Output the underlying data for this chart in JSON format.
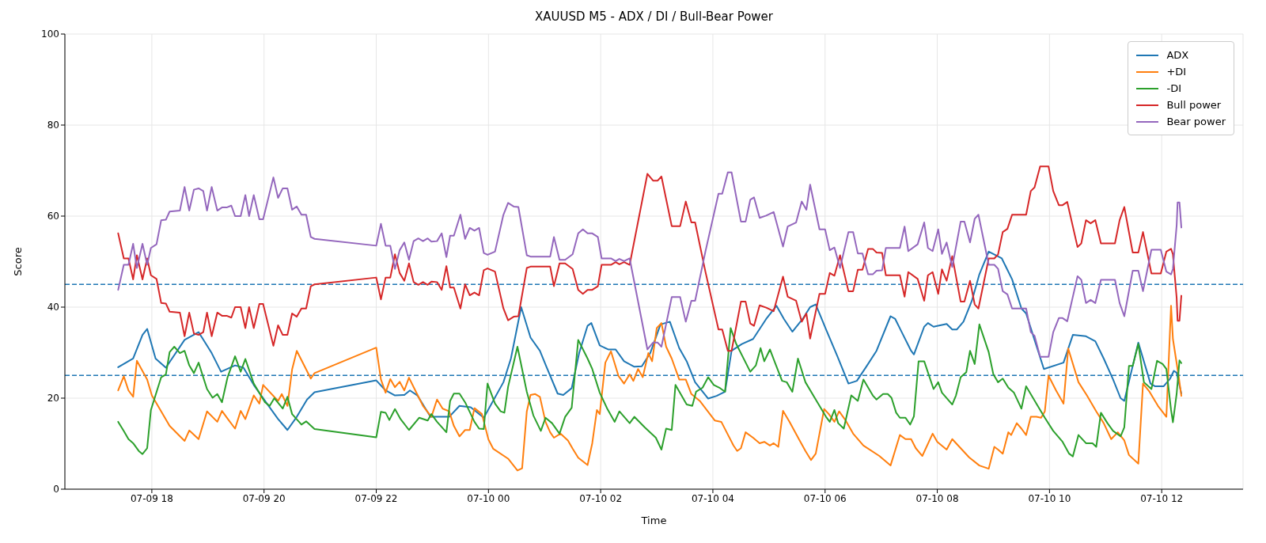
{
  "chart_data": {
    "type": "line",
    "title": "XAUUSD M5 - ADX / DI / Bull-Bear Power",
    "xlabel": "Time",
    "ylabel": "Score",
    "xlim": [
      "--07-09T16:27",
      "--07-10T13:27"
    ],
    "xticks": [
      {
        "value": "--07-09T18:00",
        "label": "07-09 18"
      },
      {
        "value": "--07-09T20:00",
        "label": "07-09 20"
      },
      {
        "value": "--07-09T22:00",
        "label": "07-09 22"
      },
      {
        "value": "--07-10T00:00",
        "label": "07-10 00"
      },
      {
        "value": "--07-10T02:00",
        "label": "07-10 02"
      },
      {
        "value": "--07-10T04:00",
        "label": "07-10 04"
      },
      {
        "value": "--07-10T06:00",
        "label": "07-10 06"
      },
      {
        "value": "--07-10T08:00",
        "label": "07-10 08"
      },
      {
        "value": "--07-10T10:00",
        "label": "07-10 10"
      },
      {
        "value": "--07-10T12:00",
        "label": "07-10 12"
      }
    ],
    "ylim": [
      0,
      100
    ],
    "yticks": [
      0,
      20,
      40,
      60,
      80,
      100
    ],
    "grid": true,
    "legend": "top right",
    "line_style": "solid",
    "ref_lines": [
      {
        "axis": "y",
        "value": 45,
        "color": "#1f77b4",
        "line_style": "dashed"
      },
      {
        "axis": "y",
        "value": 25,
        "color": "#1f77b4",
        "line_style": "dashed"
      }
    ],
    "x": [
      "--07-09T17:24",
      "--07-09T17:30",
      "--07-09T17:35",
      "--07-09T17:40",
      "--07-09T17:44",
      "--07-09T17:50",
      "--07-09T17:55",
      "--07-09T17:59",
      "--07-09T18:05",
      "--07-09T18:10",
      "--07-09T18:15",
      "--07-09T18:19",
      "--07-09T18:30",
      "--07-09T18:35",
      "--07-09T18:40",
      "--07-09T18:45",
      "--07-09T18:50",
      "--07-09T18:55",
      "--07-09T18:59",
      "--07-09T19:04",
      "--07-09T19:10",
      "--07-09T19:15",
      "--07-09T19:20",
      "--07-09T19:25",
      "--07-09T19:29",
      "--07-09T19:35",
      "--07-09T19:40",
      "--07-09T19:44",
      "--07-09T19:49",
      "--07-09T19:55",
      "--07-09T19:59",
      "--07-09T20:10",
      "--07-09T20:15",
      "--07-09T20:20",
      "--07-09T20:25",
      "--07-09T20:30",
      "--07-09T20:35",
      "--07-09T20:40",
      "--07-09T20:45",
      "--07-09T20:50",
      "--07-09T20:54",
      "--07-09T22:00",
      "--07-09T22:05",
      "--07-09T22:10",
      "--07-09T22:15",
      "--07-09T22:20",
      "--07-09T22:25",
      "--07-09T22:30",
      "--07-09T22:35",
      "--07-09T22:40",
      "--07-09T22:45",
      "--07-09T22:50",
      "--07-09T22:55",
      "--07-09T22:59",
      "--07-09T23:05",
      "--07-09T23:10",
      "--07-09T23:15",
      "--07-09T23:19",
      "--07-09T23:23",
      "--07-09T23:30",
      "--07-09T23:35",
      "--07-09T23:40",
      "--07-09T23:45",
      "--07-09T23:50",
      "--07-09T23:55",
      "--07-09T23:59",
      "--07-10T00:07",
      "--07-10T00:16",
      "--07-10T00:21",
      "--07-10T00:27",
      "--07-10T00:32",
      "--07-10T00:41",
      "--07-10T00:45",
      "--07-10T01:06",
      "--07-10T01:10",
      "--07-10T01:16",
      "--07-10T01:22",
      "--07-10T01:30",
      "--07-10T01:36",
      "--07-10T01:41",
      "--07-10T01:46",
      "--07-10T01:51",
      "--07-10T01:57",
      "--07-10T02:01",
      "--07-10T02:11",
      "--07-10T02:16",
      "--07-10T02:20",
      "--07-10T02:25",
      "--07-10T02:31",
      "--07-10T02:50",
      "--07-10T02:56",
      "--07-10T03:01",
      "--07-10T03:05",
      "--07-10T03:16",
      "--07-10T03:25",
      "--07-10T03:31",
      "--07-10T03:37",
      "--07-10T03:41",
      "--07-10T03:52",
      "--07-10T04:06",
      "--07-10T04:10",
      "--07-10T04:16",
      "--07-10T04:20",
      "--07-10T04:30",
      "--07-10T04:35",
      "--07-10T04:40",
      "--07-10T04:44",
      "--07-10T04:50",
      "--07-10T04:57",
      "--07-10T05:05",
      "--07-10T05:15",
      "--07-10T05:20",
      "--07-10T05:29",
      "--07-10T05:35",
      "--07-10T05:40",
      "--07-10T05:44",
      "--07-10T05:54",
      "--07-10T06:00",
      "--07-10T06:05",
      "--07-10T06:10",
      "--07-10T06:16",
      "--07-10T06:25",
      "--07-10T06:30",
      "--07-10T06:35",
      "--07-10T06:40",
      "--07-10T06:46",
      "--07-10T06:51",
      "--07-10T06:55",
      "--07-10T07:01",
      "--07-10T07:05",
      "--07-10T07:20",
      "--07-10T07:25",
      "--07-10T07:29",
      "--07-10T07:39",
      "--07-10T07:46",
      "--07-10T07:50",
      "--07-10T07:55",
      "--07-10T08:01",
      "--07-10T08:05",
      "--07-10T08:10",
      "--07-10T08:16",
      "--07-10T08:25",
      "--07-10T08:29",
      "--07-10T08:35",
      "--07-10T08:40",
      "--07-10T08:44",
      "--07-10T08:55",
      "--07-10T09:01",
      "--07-10T09:05",
      "--07-10T09:10",
      "--07-10T09:15",
      "--07-10T09:20",
      "--07-10T09:35",
      "--07-10T09:40",
      "--07-10T09:44",
      "--07-10T09:50",
      "--07-10T09:59",
      "--07-10T10:04",
      "--07-10T10:10",
      "--07-10T10:14",
      "--07-10T10:19",
      "--07-10T10:30",
      "--07-10T10:34",
      "--07-10T10:39",
      "--07-10T10:44",
      "--07-10T10:49",
      "--07-10T10:55",
      "--07-10T11:10",
      "--07-10T11:15",
      "--07-10T11:20",
      "--07-10T11:29",
      "--07-10T11:35",
      "--07-10T11:40",
      "--07-10T11:49",
      "--07-10T11:59",
      "--07-10T12:05",
      "--07-10T12:10",
      "--07-10T12:12",
      "--07-10T12:16",
      "--07-10T12:17",
      "--07-10T12:19",
      "--07-10T12:21"
    ],
    "series": [
      {
        "name": "ADX",
        "color": "#1f77b4",
        "x": [
          "--07-09T17:24",
          "--07-09T17:40",
          "--07-09T17:50",
          "--07-09T17:55",
          "--07-09T18:04",
          "--07-09T18:15",
          "--07-09T18:35",
          "--07-09T18:50",
          "--07-09T19:04",
          "--07-09T19:14",
          "--07-09T19:29",
          "--07-09T19:38",
          "--07-09T19:49",
          "--07-09T20:01",
          "--07-09T20:15",
          "--07-09T20:25",
          "--07-09T20:35",
          "--07-09T20:46",
          "--07-09T20:54",
          "--07-09T22:00",
          "--07-09T22:10",
          "--07-09T22:20",
          "--07-09T22:30",
          "--07-09T22:36",
          "--07-09T22:44",
          "--07-09T22:58",
          "--07-09T23:18",
          "--07-09T23:29",
          "--07-09T23:41",
          "--07-09T23:55",
          "--07-10T00:16",
          "--07-10T00:24",
          "--07-10T00:35",
          "--07-10T00:45",
          "--07-10T00:55",
          "--07-10T01:02",
          "--07-10T01:14",
          "--07-10T01:20",
          "--07-10T01:29",
          "--07-10T01:37",
          "--07-10T01:46",
          "--07-10T01:50",
          "--07-10T01:59",
          "--07-10T02:08",
          "--07-10T02:16",
          "--07-10T02:25",
          "--07-10T02:36",
          "--07-10T02:44",
          "--07-10T02:53",
          "--07-10T03:04",
          "--07-10T03:14",
          "--07-10T03:24",
          "--07-10T03:32",
          "--07-10T03:41",
          "--07-10T03:55",
          "--07-10T04:04",
          "--07-10T04:13",
          "--07-10T04:20",
          "--07-10T04:31",
          "--07-10T04:43",
          "--07-10T04:57",
          "--07-10T05:08",
          "--07-10T05:16",
          "--07-10T05:25",
          "--07-10T05:36",
          "--07-10T05:44",
          "--07-10T05:50",
          "--07-10T06:01",
          "--07-10T06:13",
          "--07-10T06:25",
          "--07-10T06:34",
          "--07-10T06:44",
          "--07-10T06:55",
          "--07-10T07:10",
          "--07-10T07:15",
          "--07-10T07:22",
          "--07-10T07:32",
          "--07-10T07:35",
          "--07-10T07:46",
          "--07-10T07:50",
          "--07-10T07:56",
          "--07-10T08:10",
          "--07-10T08:16",
          "--07-10T08:21",
          "--07-10T08:28",
          "--07-10T08:37",
          "--07-10T08:45",
          "--07-10T08:55",
          "--07-10T09:09",
          "--07-10T09:20",
          "--07-10T09:30",
          "--07-10T09:35",
          "--07-10T09:44",
          "--07-10T09:54",
          "--07-10T10:15",
          "--07-10T10:25",
          "--07-10T10:39",
          "--07-10T10:49",
          "--07-10T10:58",
          "--07-10T11:08",
          "--07-10T11:16",
          "--07-10T11:20",
          "--07-10T11:35",
          "--07-10T11:48",
          "--07-10T11:53",
          "--07-10T12:02",
          "--07-10T12:09",
          "--07-10T12:13",
          "--07-10T12:16",
          "--07-10T12:21"
        ],
        "values": [
          26.8,
          28.7,
          33.9,
          35.2,
          28.7,
          26.7,
          32.8,
          34.5,
          29.9,
          25.8,
          27.2,
          26.7,
          22.9,
          19.4,
          15.4,
          13.0,
          15.9,
          19.7,
          21.3,
          23.9,
          21.7,
          20.6,
          20.7,
          21.7,
          20.6,
          15.9,
          15.9,
          18.3,
          18.0,
          15.7,
          23.5,
          28.7,
          40.0,
          33.3,
          30.4,
          26.9,
          21.0,
          20.7,
          22.2,
          29.9,
          35.9,
          36.5,
          31.6,
          30.7,
          30.7,
          28.1,
          26.9,
          27.0,
          29.9,
          36.2,
          36.8,
          31.0,
          28.1,
          23.5,
          19.9,
          20.5,
          21.4,
          30.4,
          31.9,
          33.0,
          37.4,
          40.3,
          37.4,
          34.6,
          37.4,
          40.0,
          40.6,
          35.1,
          29.3,
          23.2,
          23.8,
          26.9,
          30.4,
          38.0,
          37.4,
          34.5,
          30.4,
          29.6,
          35.7,
          36.5,
          35.7,
          36.3,
          35.1,
          35.1,
          36.8,
          41.4,
          47.2,
          52.2,
          50.7,
          46.1,
          39.7,
          38.6,
          32.8,
          26.4,
          27.8,
          33.9,
          33.6,
          32.5,
          28.7,
          24.1,
          20.0,
          19.4,
          32.2,
          23.2,
          22.6,
          22.6,
          24.3,
          26.0,
          25.6,
          21.0
        ]
      },
      {
        "name": "+DI",
        "color": "#ff7f0e",
        "x": [
          "--07-09T17:24",
          "--07-09T17:30",
          "--07-09T17:35",
          "--07-09T17:40",
          "--07-09T17:44",
          "--07-09T17:55",
          "--07-09T18:00",
          "--07-09T18:10",
          "--07-09T18:19",
          "--07-09T18:35",
          "--07-09T18:40",
          "--07-09T18:50",
          "--07-09T18:59",
          "--07-09T19:10",
          "--07-09T19:15",
          "--07-09T19:21",
          "--07-09T19:29",
          "--07-09T19:35",
          "--07-09T19:40",
          "--07-09T19:49",
          "--07-09T19:55",
          "--07-09T19:59",
          "--07-09T20:15",
          "--07-09T20:19",
          "--07-09T20:25",
          "--07-09T20:30",
          "--07-09T20:35",
          "--07-09T20:50",
          "--07-09T20:54",
          "--07-09T22:00",
          "--07-09T22:05",
          "--07-09T22:10",
          "--07-09T22:15",
          "--07-09T22:20",
          "--07-09T22:25",
          "--07-09T22:30",
          "--07-09T22:35",
          "--07-09T22:41",
          "--07-09T22:50",
          "--07-09T22:59",
          "--07-09T23:05",
          "--07-09T23:11",
          "--07-09T23:18",
          "--07-09T23:23",
          "--07-09T23:29",
          "--07-09T23:35",
          "--07-09T23:40",
          "--07-09T23:45",
          "--07-09T23:53",
          "--07-10T00:00",
          "--07-10T00:05",
          "--07-10T00:21",
          "--07-10T00:31",
          "--07-10T00:36",
          "--07-10T00:41",
          "--07-10T00:45",
          "--07-10T00:50",
          "--07-10T00:55",
          "--07-10T01:01",
          "--07-10T01:06",
          "--07-10T01:10",
          "--07-10T01:17",
          "--07-10T01:25",
          "--07-10T01:30",
          "--07-10T01:36",
          "--07-10T01:46",
          "--07-10T01:51",
          "--07-10T01:56",
          "--07-10T01:59",
          "--07-10T02:05",
          "--07-10T02:11",
          "--07-10T02:19",
          "--07-10T02:25",
          "--07-10T02:31",
          "--07-10T02:35",
          "--07-10T02:40",
          "--07-10T02:45",
          "--07-10T02:51",
          "--07-10T02:55",
          "--07-10T03:00",
          "--07-10T03:05",
          "--07-10T03:10",
          "--07-10T03:16",
          "--07-10T03:24",
          "--07-10T03:31",
          "--07-10T03:37",
          "--07-10T03:46",
          "--07-10T04:02",
          "--07-10T04:09",
          "--07-10T04:14",
          "--07-10T04:22",
          "--07-10T04:26",
          "--07-10T04:30",
          "--07-10T04:35",
          "--07-10T04:43",
          "--07-10T04:50",
          "--07-10T04:55",
          "--07-10T05:01",
          "--07-10T05:05",
          "--07-10T05:10",
          "--07-10T05:15",
          "--07-10T05:22",
          "--07-10T05:32",
          "--07-10T05:39",
          "--07-10T05:45",
          "--07-10T05:50",
          "--07-10T05:59",
          "--07-10T06:04",
          "--07-10T06:10",
          "--07-10T06:15",
          "--07-10T06:22",
          "--07-10T06:30",
          "--07-10T06:41",
          "--07-10T06:58",
          "--07-10T07:10",
          "--07-10T07:20",
          "--07-10T07:26",
          "--07-10T07:32",
          "--07-10T07:37",
          "--07-10T07:44",
          "--07-10T07:55",
          "--07-10T08:00",
          "--07-10T08:10",
          "--07-10T08:16",
          "--07-10T08:34",
          "--07-10T08:45",
          "--07-10T08:55",
          "--07-10T09:01",
          "--07-10T09:05",
          "--07-10T09:10",
          "--07-10T09:16",
          "--07-10T09:19",
          "--07-10T09:25",
          "--07-10T09:30",
          "--07-10T09:35",
          "--07-10T09:40",
          "--07-10T09:46",
          "--07-10T09:51",
          "--07-10T09:55",
          "--07-10T09:59",
          "--07-10T10:07",
          "--07-10T10:15",
          "--07-10T10:20",
          "--07-10T10:31",
          "--07-10T10:40",
          "--07-10T10:50",
          "--07-10T10:58",
          "--07-10T11:06",
          "--07-10T11:13",
          "--07-10T11:20",
          "--07-10T11:25",
          "--07-10T11:35",
          "--07-10T11:40",
          "--07-10T11:47",
          "--07-10T11:56",
          "--07-10T12:05",
          "--07-10T12:10",
          "--07-10T12:12",
          "--07-10T12:15",
          "--07-10T12:18",
          "--07-10T12:21"
        ],
        "values": [
          21.7,
          24.8,
          21.7,
          20.3,
          28.2,
          24.1,
          20.6,
          17.1,
          13.9,
          10.6,
          12.9,
          11.0,
          17.1,
          14.8,
          17.2,
          15.5,
          13.3,
          17.2,
          15.4,
          20.6,
          18.8,
          22.9,
          19.4,
          20.9,
          18.3,
          26.3,
          30.4,
          24.3,
          25.5,
          31.1,
          24.1,
          21.2,
          24.2,
          22.4,
          23.6,
          21.7,
          24.5,
          22.0,
          18.3,
          15.9,
          19.7,
          17.7,
          17.1,
          13.9,
          11.6,
          13.0,
          13.0,
          17.8,
          16.5,
          10.9,
          8.9,
          6.7,
          4.1,
          4.6,
          17.1,
          20.7,
          20.9,
          20.3,
          14.8,
          12.5,
          11.3,
          12.2,
          10.7,
          8.9,
          6.9,
          5.3,
          10.1,
          17.4,
          16.5,
          27.8,
          30.3,
          24.9,
          23.2,
          25.2,
          23.8,
          26.4,
          24.6,
          29.9,
          28.1,
          35.4,
          36.5,
          31.3,
          28.7,
          24.1,
          24.1,
          20.9,
          19.4,
          15.1,
          14.8,
          12.8,
          9.6,
          8.4,
          9.0,
          12.5,
          11.3,
          10.1,
          10.4,
          9.6,
          10.1,
          9.3,
          17.2,
          14.8,
          11.0,
          8.4,
          6.4,
          7.8,
          17.6,
          16.5,
          14.8,
          17.1,
          15.1,
          12.2,
          9.6,
          7.3,
          5.2,
          11.9,
          11.0,
          11.0,
          9.0,
          7.3,
          12.2,
          10.4,
          8.7,
          11.0,
          7.0,
          5.2,
          4.5,
          9.3,
          8.7,
          7.8,
          12.5,
          11.9,
          14.5,
          13.3,
          11.9,
          15.9,
          15.9,
          15.7,
          17.1,
          24.9,
          21.7,
          18.8,
          30.9,
          23.5,
          20.6,
          17.1,
          14.5,
          11.0,
          12.5,
          10.7,
          7.5,
          5.6,
          23.2,
          21.4,
          18.3,
          15.9,
          40.3,
          33.0,
          29.0,
          25.0,
          20.5
        ]
      },
      {
        "name": "-DI",
        "color": "#2ca02c",
        "x": [
          "--07-09T17:24",
          "--07-09T17:30",
          "--07-09T17:35",
          "--07-09T17:40",
          "--07-09T17:46",
          "--07-09T17:50",
          "--07-09T17:55",
          "--07-09T17:59",
          "--07-09T18:10",
          "--07-09T18:15",
          "--07-09T18:19",
          "--07-09T18:24",
          "--07-09T18:30",
          "--07-09T18:35",
          "--07-09T18:40",
          "--07-09T18:45",
          "--07-09T18:50",
          "--07-09T18:59",
          "--07-09T19:05",
          "--07-09T19:10",
          "--07-09T19:15",
          "--07-09T19:21",
          "--07-09T19:29",
          "--07-09T19:35",
          "--07-09T19:40",
          "--07-09T19:49",
          "--07-09T20:01",
          "--07-09T20:06",
          "--07-09T20:11",
          "--07-09T20:20",
          "--07-09T20:25",
          "--07-09T20:30",
          "--07-09T20:40",
          "--07-09T20:45",
          "--07-09T20:54",
          "--07-09T22:00",
          "--07-09T22:05",
          "--07-09T22:10",
          "--07-09T22:14",
          "--07-09T22:20",
          "--07-09T22:26",
          "--07-09T22:35",
          "--07-09T22:46",
          "--07-09T22:55",
          "--07-09T22:59",
          "--07-09T23:05",
          "--07-09T23:15",
          "--07-09T23:19",
          "--07-09T23:23",
          "--07-09T23:29",
          "--07-09T23:35",
          "--07-09T23:45",
          "--07-09T23:50",
          "--07-09T23:55",
          "--07-09T23:59",
          "--07-10T00:07",
          "--07-10T00:13",
          "--07-10T00:17",
          "--07-10T00:21",
          "--07-10T00:31",
          "--07-10T00:41",
          "--07-10T00:48",
          "--07-10T00:56",
          "--07-10T01:01",
          "--07-10T01:08",
          "--07-10T01:16",
          "--07-10T01:22",
          "--07-10T01:29",
          "--07-10T01:36",
          "--07-10T01:46",
          "--07-10T01:51",
          "--07-10T01:59",
          "--07-10T02:07",
          "--07-10T02:15",
          "--07-10T02:20",
          "--07-10T02:31",
          "--07-10T02:36",
          "--07-10T02:47",
          "--07-10T02:59",
          "--07-10T03:05",
          "--07-10T03:10",
          "--07-10T03:16",
          "--07-10T03:20",
          "--07-10T03:32",
          "--07-10T03:38",
          "--07-10T03:42",
          "--07-10T03:49",
          "--07-10T03:55",
          "--07-10T04:01",
          "--07-10T04:07",
          "--07-10T04:13",
          "--07-10T04:19",
          "--07-10T04:25",
          "--07-10T04:40",
          "--07-10T04:46",
          "--07-10T04:51",
          "--07-10T04:55",
          "--07-10T05:01",
          "--07-10T05:07",
          "--07-10T05:14",
          "--07-10T05:19",
          "--07-10T05:25",
          "--07-10T05:31",
          "--07-10T05:39",
          "--07-10T05:50",
          "--07-10T06:01",
          "--07-10T06:05",
          "--07-10T06:10",
          "--07-10T06:14",
          "--07-10T06:20",
          "--07-10T06:28",
          "--07-10T06:35",
          "--07-10T06:41",
          "--07-10T06:51",
          "--07-10T06:55",
          "--07-10T07:02",
          "--07-10T07:07",
          "--07-10T07:11",
          "--07-10T07:16",
          "--07-10T07:20",
          "--07-10T07:26",
          "--07-10T07:31",
          "--07-10T07:35",
          "--07-10T07:40",
          "--07-10T07:46",
          "--07-10T07:56",
          "--07-10T08:01",
          "--07-10T08:05",
          "--07-10T08:16",
          "--07-10T08:20",
          "--07-10T08:25",
          "--07-10T08:31",
          "--07-10T08:35",
          "--07-10T08:40",
          "--07-10T08:45",
          "--07-10T08:55",
          "--07-10T09:00",
          "--07-10T09:05",
          "--07-10T09:10",
          "--07-10T09:16",
          "--07-10T09:22",
          "--07-10T09:30",
          "--07-10T09:35",
          "--07-10T09:46",
          "--07-10T09:55",
          "--07-10T10:04",
          "--07-10T10:14",
          "--07-10T10:21",
          "--07-10T10:25",
          "--07-10T10:31",
          "--07-10T10:39",
          "--07-10T10:46",
          "--07-10T10:50",
          "--07-10T10:55",
          "--07-10T11:02",
          "--07-10T11:08",
          "--07-10T11:16",
          "--07-10T11:20",
          "--07-10T11:25",
          "--07-10T11:29",
          "--07-10T11:35",
          "--07-10T11:41",
          "--07-10T11:49",
          "--07-10T11:55",
          "--07-10T12:01",
          "--07-10T12:05",
          "--07-10T12:10",
          "--07-10T12:12",
          "--07-10T12:16",
          "--07-10T12:19",
          "--07-10T12:21"
        ],
        "values": [
          14.8,
          12.8,
          11.0,
          10.1,
          8.4,
          7.7,
          9.0,
          17.4,
          24.6,
          25.2,
          30.1,
          31.3,
          29.9,
          30.4,
          27.2,
          25.5,
          27.8,
          22.0,
          20.1,
          20.9,
          19.1,
          24.6,
          29.2,
          25.8,
          28.6,
          23.2,
          19.1,
          18.3,
          20.0,
          17.7,
          20.3,
          16.5,
          14.2,
          14.9,
          13.2,
          11.4,
          17.0,
          16.8,
          15.2,
          17.6,
          15.4,
          13.0,
          15.7,
          15.1,
          16.5,
          14.8,
          12.5,
          19.4,
          21.0,
          21.0,
          19.1,
          14.8,
          13.3,
          13.2,
          23.2,
          18.8,
          17.1,
          16.8,
          22.5,
          31.3,
          21.4,
          16.2,
          12.8,
          15.7,
          14.5,
          12.2,
          15.9,
          17.9,
          32.8,
          28.7,
          26.4,
          21.2,
          17.7,
          14.8,
          17.1,
          14.5,
          15.9,
          13.6,
          11.3,
          8.7,
          13.3,
          13.0,
          22.9,
          18.6,
          18.3,
          21.4,
          22.3,
          24.6,
          22.9,
          22.3,
          21.4,
          35.4,
          31.9,
          25.8,
          27.2,
          31.0,
          28.1,
          30.7,
          27.5,
          23.8,
          23.5,
          21.4,
          28.7,
          23.5,
          19.7,
          15.9,
          14.8,
          17.4,
          14.5,
          13.3,
          20.6,
          19.4,
          24.1,
          20.6,
          19.7,
          20.9,
          20.9,
          20.1,
          16.8,
          15.7,
          15.7,
          14.2,
          16.0,
          28.1,
          28.1,
          22.0,
          23.5,
          21.2,
          18.6,
          20.6,
          24.6,
          25.7,
          30.4,
          27.5,
          36.2,
          30.1,
          25.2,
          23.5,
          24.3,
          22.3,
          21.2,
          17.7,
          22.6,
          18.8,
          15.7,
          12.8,
          10.4,
          7.8,
          7.2,
          11.9,
          10.1,
          10.1,
          9.3,
          16.8,
          14.5,
          12.8,
          11.6,
          13.6,
          27.1,
          27.1,
          31.9,
          23.5,
          22.0,
          28.2,
          27.5,
          26.4,
          17.4,
          14.7,
          21.0,
          28.3,
          27.7
        ]
      },
      {
        "name": "Bull power",
        "color": "#d62728",
        "values": [
          56.2,
          50.7,
          50.7,
          46.1,
          51.4,
          46.1,
          50.7,
          47.0,
          46.2,
          40.9,
          40.8,
          39.0,
          38.8,
          33.6,
          38.8,
          34.2,
          33.9,
          34.5,
          38.8,
          33.6,
          38.8,
          38.1,
          38.1,
          37.7,
          40.0,
          40.0,
          35.4,
          40.0,
          35.4,
          40.7,
          40.7,
          31.5,
          36.0,
          33.9,
          33.9,
          38.6,
          37.9,
          39.7,
          39.7,
          44.6,
          45.0,
          46.5,
          41.7,
          46.5,
          46.5,
          51.6,
          47.5,
          45.8,
          49.6,
          45.5,
          44.9,
          45.5,
          44.9,
          45.6,
          45.5,
          43.8,
          49.0,
          44.3,
          44.3,
          39.7,
          45.0,
          42.6,
          43.2,
          42.6,
          48.1,
          48.5,
          47.8,
          39.7,
          37.1,
          37.9,
          38.0,
          48.6,
          48.9,
          48.9,
          44.6,
          49.6,
          49.6,
          48.4,
          43.8,
          42.9,
          43.8,
          43.8,
          44.6,
          49.3,
          49.3,
          49.9,
          49.4,
          49.9,
          49.3,
          69.3,
          67.8,
          67.8,
          68.7,
          57.8,
          57.8,
          63.2,
          58.6,
          58.6,
          47.8,
          35.1,
          35.1,
          30.4,
          30.4,
          41.2,
          41.2,
          36.4,
          35.9,
          40.4,
          39.9,
          39.1,
          46.7,
          42.3,
          41.4,
          36.8,
          38.6,
          33.1,
          42.9,
          42.9,
          47.5,
          46.9,
          51.4,
          43.5,
          43.5,
          48.2,
          48.2,
          52.8,
          52.8,
          52.0,
          51.9,
          47.0,
          47.0,
          42.3,
          47.7,
          46.2,
          41.4,
          47.0,
          47.7,
          42.9,
          48.3,
          45.8,
          51.2,
          41.2,
          41.2,
          45.8,
          40.6,
          39.7,
          50.7,
          50.7,
          51.6,
          56.5,
          57.2,
          60.3,
          60.3,
          65.5,
          66.3,
          70.9,
          70.9,
          65.5,
          62.4,
          62.4,
          63.1,
          53.2,
          54.0,
          59.1,
          58.4,
          59.1,
          54.0,
          54.0,
          59.1,
          62.0,
          52.0,
          52.0,
          56.5,
          47.4,
          47.4,
          52.2,
          52.8,
          51.6,
          42.0,
          37.0,
          37.0,
          42.5
        ]
      },
      {
        "name": "Bear power",
        "color": "#9467bd",
        "values": [
          43.8,
          49.3,
          49.3,
          53.9,
          48.6,
          53.9,
          49.3,
          53.0,
          53.8,
          59.1,
          59.2,
          61.0,
          61.2,
          66.4,
          61.2,
          65.8,
          66.1,
          65.5,
          61.2,
          66.4,
          61.2,
          61.9,
          61.9,
          62.3,
          60.0,
          60.0,
          64.6,
          60.0,
          64.6,
          59.3,
          59.3,
          68.5,
          64.0,
          66.1,
          66.1,
          61.4,
          62.1,
          60.3,
          60.3,
          55.4,
          55.0,
          53.5,
          58.3,
          53.5,
          53.5,
          48.4,
          52.5,
          54.2,
          50.4,
          54.5,
          55.1,
          54.5,
          55.1,
          54.4,
          54.5,
          56.2,
          51.0,
          55.7,
          55.7,
          60.3,
          55.0,
          57.4,
          56.8,
          57.4,
          51.9,
          51.5,
          52.2,
          60.3,
          62.9,
          62.1,
          62.0,
          51.4,
          51.1,
          51.1,
          55.4,
          50.4,
          50.4,
          51.6,
          56.2,
          57.1,
          56.2,
          56.2,
          55.4,
          50.7,
          50.7,
          50.1,
          50.6,
          50.1,
          50.7,
          30.7,
          32.2,
          32.2,
          31.3,
          42.2,
          42.2,
          36.8,
          41.4,
          41.4,
          52.2,
          64.9,
          64.9,
          69.6,
          69.6,
          58.8,
          58.8,
          63.6,
          64.1,
          59.6,
          60.1,
          60.9,
          53.3,
          57.7,
          58.6,
          63.2,
          61.4,
          66.9,
          57.1,
          57.1,
          52.5,
          53.1,
          48.6,
          56.5,
          56.5,
          51.8,
          51.8,
          47.2,
          47.2,
          48.0,
          48.1,
          53.0,
          53.0,
          57.7,
          52.3,
          53.8,
          58.6,
          53.0,
          52.3,
          57.1,
          51.7,
          54.2,
          48.8,
          58.8,
          58.8,
          54.2,
          59.4,
          60.3,
          49.3,
          49.3,
          48.4,
          43.5,
          42.8,
          39.7,
          39.7,
          34.5,
          33.7,
          29.1,
          29.1,
          34.5,
          37.6,
          37.6,
          36.9,
          46.8,
          46.0,
          40.9,
          41.6,
          40.9,
          46.0,
          46.0,
          40.9,
          38.0,
          48.0,
          48.0,
          43.5,
          52.6,
          52.6,
          47.8,
          47.2,
          48.4,
          58.0,
          63.0,
          63.0,
          57.5
        ]
      }
    ]
  }
}
